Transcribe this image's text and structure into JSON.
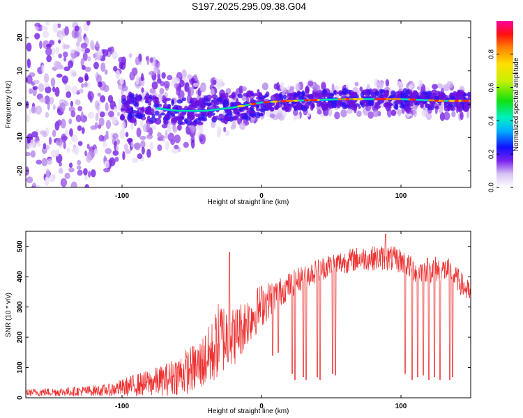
{
  "title": "S197.2025.295.09.38.G04",
  "chart_data": [
    {
      "type": "heatmap",
      "name": "spectrogram",
      "xlabel": "Height of straight line (km)",
      "ylabel": "Frequency (Hz)",
      "xlim": [
        -169,
        150
      ],
      "ylim": [
        -25,
        25
      ],
      "xticks": [
        -100,
        0,
        100
      ],
      "yticks": [
        -20,
        -10,
        0,
        10,
        20
      ],
      "ridge": {
        "description_points": [
          {
            "x": -80,
            "y": -1
          },
          {
            "x": -60,
            "y": -2
          },
          {
            "x": -40,
            "y": -2
          },
          {
            "x": -20,
            "y": -1
          },
          {
            "x": 0,
            "y": 0.5
          },
          {
            "x": 20,
            "y": 1
          },
          {
            "x": 60,
            "y": 1.5
          },
          {
            "x": 100,
            "y": 1.5
          },
          {
            "x": 130,
            "y": 1
          },
          {
            "x": 150,
            "y": 1
          }
        ]
      },
      "colorbar": {
        "label": "Normalized spectral amplitude",
        "range": [
          0.0,
          1.0
        ],
        "ticks": [
          0.0,
          0.2,
          0.4,
          0.6,
          0.8
        ],
        "tick_labels": [
          "0.0",
          "0.2",
          "0.4",
          "0.6",
          "0.8"
        ]
      }
    },
    {
      "type": "line",
      "name": "snr",
      "xlabel": "Height of straight line (km)",
      "ylabel": "SNR (10 * v/v)",
      "xlim": [
        -169,
        150
      ],
      "ylim": [
        0,
        550
      ],
      "xticks": [
        -100,
        0,
        100
      ],
      "yticks": [
        0,
        100,
        200,
        300,
        400,
        500
      ],
      "color": "#ee3333",
      "envelope": [
        {
          "x": -169,
          "low": 5,
          "high": 30
        },
        {
          "x": -140,
          "low": 5,
          "high": 35
        },
        {
          "x": -110,
          "low": 5,
          "high": 45
        },
        {
          "x": -90,
          "low": 5,
          "high": 80
        },
        {
          "x": -70,
          "low": 5,
          "high": 110
        },
        {
          "x": -55,
          "low": 10,
          "high": 160
        },
        {
          "x": -45,
          "low": 20,
          "high": 190
        },
        {
          "x": -35,
          "low": 40,
          "high": 260
        },
        {
          "x": -30,
          "low": 70,
          "high": 330
        },
        {
          "x": -20,
          "low": 100,
          "high": 300
        },
        {
          "x": -10,
          "low": 170,
          "high": 340
        },
        {
          "x": 0,
          "low": 230,
          "high": 380
        },
        {
          "x": 10,
          "low": 290,
          "high": 390
        },
        {
          "x": 30,
          "low": 360,
          "high": 440
        },
        {
          "x": 50,
          "low": 400,
          "high": 480
        },
        {
          "x": 70,
          "low": 420,
          "high": 500
        },
        {
          "x": 90,
          "low": 420,
          "high": 505
        },
        {
          "x": 100,
          "low": 410,
          "high": 495
        },
        {
          "x": 110,
          "low": 380,
          "high": 460
        },
        {
          "x": 125,
          "low": 380,
          "high": 470
        },
        {
          "x": 135,
          "low": 380,
          "high": 460
        },
        {
          "x": 150,
          "low": 300,
          "high": 380
        }
      ],
      "spike": {
        "x": -23,
        "value": 480
      },
      "peak": {
        "x": 89,
        "value": 540
      },
      "dropouts": [
        {
          "x": 8,
          "value": 140
        },
        {
          "x": 12,
          "value": 150
        },
        {
          "x": 22,
          "value": 80
        },
        {
          "x": 24,
          "value": 60
        },
        {
          "x": 30,
          "value": 70
        },
        {
          "x": 32,
          "value": 60
        },
        {
          "x": 40,
          "value": 70
        },
        {
          "x": 42,
          "value": 60
        },
        {
          "x": 51,
          "value": 80
        },
        {
          "x": 53,
          "value": 75
        },
        {
          "x": 103,
          "value": 80
        },
        {
          "x": 108,
          "value": 60
        },
        {
          "x": 112,
          "value": 70
        },
        {
          "x": 116,
          "value": 75
        },
        {
          "x": 120,
          "value": 60
        },
        {
          "x": 124,
          "value": 70
        },
        {
          "x": 128,
          "value": 60
        },
        {
          "x": 135,
          "value": 60
        },
        {
          "x": 137,
          "value": 70
        }
      ]
    }
  ]
}
